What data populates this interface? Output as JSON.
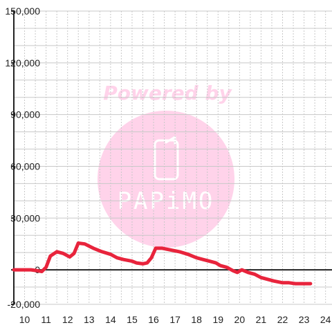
{
  "chart_data": {
    "type": "line",
    "title": "",
    "xlabel": "",
    "ylabel": "",
    "xlim": [
      9.5,
      24.3
    ],
    "ylim": [
      -20000,
      150000
    ],
    "x_ticks": [
      "10",
      "11",
      "12",
      "13",
      "14",
      "15",
      "16",
      "17",
      "18",
      "19",
      "20",
      "21",
      "22",
      "23",
      "24"
    ],
    "y_ticks": [
      "-20,000",
      "0",
      "30,000",
      "60,000",
      "90,000",
      "120,000",
      "150,000"
    ],
    "y_tick_values": [
      -20000,
      0,
      30000,
      60000,
      90000,
      120000,
      150000
    ],
    "grid": true,
    "legend": "none",
    "series": [
      {
        "color": "#e8243c",
        "x": [
          9.5,
          10.0,
          10.3,
          10.6,
          10.8,
          11.0,
          11.2,
          11.5,
          11.8,
          12.1,
          12.3,
          12.5,
          12.8,
          13.2,
          13.6,
          14.0,
          14.3,
          14.6,
          15.0,
          15.2,
          15.5,
          15.7,
          15.9,
          16.1,
          16.4,
          16.8,
          17.2,
          17.6,
          18.0,
          18.3,
          18.6,
          18.9,
          19.1,
          19.4,
          19.7,
          19.9,
          20.1,
          20.4,
          20.7,
          21.0,
          21.3,
          21.6,
          22.0,
          22.3,
          22.6,
          23.0,
          23.3
        ],
        "y": [
          0,
          0,
          0,
          -500,
          -1000,
          1500,
          8000,
          10500,
          9500,
          7500,
          9500,
          15500,
          15000,
          12500,
          10500,
          9000,
          7000,
          6000,
          5000,
          4000,
          3500,
          4000,
          7000,
          12500,
          12500,
          11500,
          10500,
          9000,
          7000,
          6000,
          5000,
          4000,
          2500,
          1500,
          -500,
          -1500,
          0,
          -1500,
          -2500,
          -4500,
          -5500,
          -6500,
          -7500,
          -7500,
          -8000,
          -8000,
          -8000
        ]
      }
    ]
  },
  "watermark": {
    "text": "Powered by",
    "logo_text": "PAPiMO",
    "color": "#ffd3ea",
    "icon": "phone-icon"
  },
  "colors": {
    "line": "#e8243c",
    "axis": "#222222",
    "grid": "#c8c8c8",
    "watermark": "#ffd3ea"
  }
}
